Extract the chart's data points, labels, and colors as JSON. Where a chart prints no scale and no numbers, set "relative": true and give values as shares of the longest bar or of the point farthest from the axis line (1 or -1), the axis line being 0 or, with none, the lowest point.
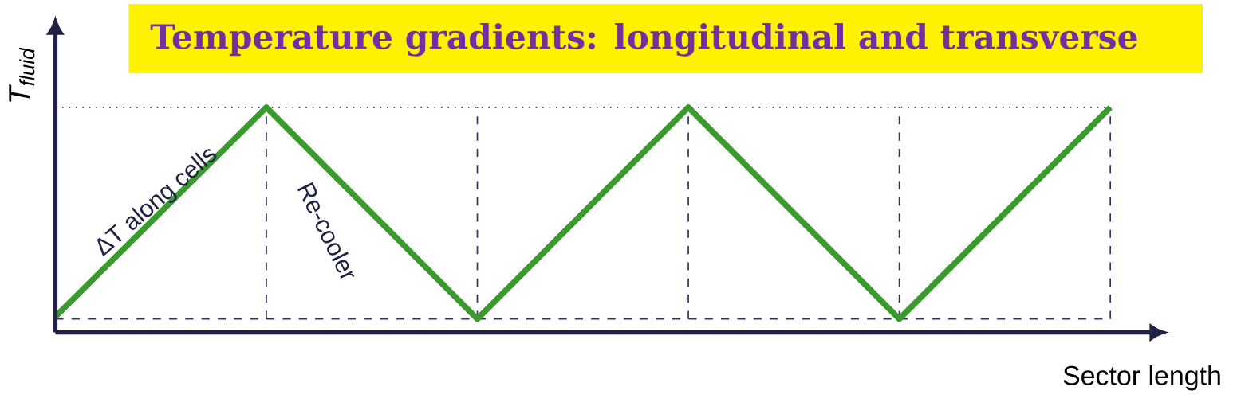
{
  "chart_data": {
    "type": "line",
    "relative": true,
    "line_style": "solid",
    "grid": true,
    "title": "Temperature gradients: longitudinal and transverse",
    "xlabel": "Sector length",
    "ylabel": "T$_{fluid}$",
    "categories": [
      null,
      null,
      null,
      null,
      null,
      null
    ],
    "series": [
      {
        "color": "#3a9a2e",
        "values": [
          0.07,
          1,
          0.06,
          1,
          0.06,
          1
        ]
      }
    ],
    "annotations": [
      "ΔT along cells",
      "Re-cooler"
    ]
  }
}
